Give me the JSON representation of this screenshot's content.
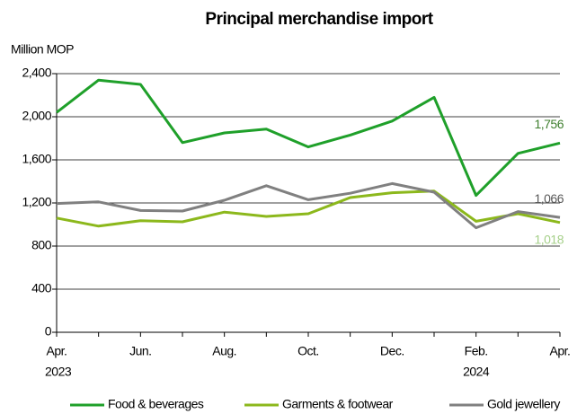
{
  "chart_data": {
    "type": "line",
    "title": "Principal merchandise import",
    "y_axis_label": "Million MOP",
    "categories": [
      "Apr.",
      null,
      "Jun.",
      null,
      "Aug.",
      null,
      "Oct.",
      null,
      "Dec.",
      null,
      "Feb.",
      null,
      "Apr."
    ],
    "year_labels": [
      "2023",
      null,
      null,
      null,
      null,
      null,
      null,
      null,
      null,
      null,
      "2024",
      null,
      null
    ],
    "series": [
      {
        "name": "Food & beverages",
        "color": "#1fa02a",
        "label_color": "#3f7f2f",
        "values": [
          2040,
          2340,
          2300,
          1760,
          1850,
          1885,
          1720,
          1830,
          1960,
          2180,
          1270,
          1660,
          1756
        ],
        "value_labels": [
          null,
          null,
          null,
          null,
          null,
          null,
          null,
          null,
          null,
          null,
          null,
          null,
          "1,756"
        ]
      },
      {
        "name": "Garments & footwear",
        "color": "#8cb81c",
        "label_color": "#a6d08a",
        "values": [
          1060,
          985,
          1035,
          1025,
          1115,
          1075,
          1100,
          1250,
          1295,
          1310,
          1030,
          1100,
          1018
        ],
        "value_labels": [
          null,
          null,
          null,
          null,
          null,
          null,
          null,
          null,
          null,
          null,
          null,
          null,
          "1,018"
        ]
      },
      {
        "name": "Gold jewellery",
        "color": "#808080",
        "label_color": "#595959",
        "values": [
          1195,
          1210,
          1130,
          1125,
          1225,
          1360,
          1230,
          1290,
          1380,
          1300,
          970,
          1120,
          1066
        ],
        "value_labels": [
          null,
          null,
          null,
          null,
          null,
          null,
          null,
          null,
          null,
          null,
          null,
          null,
          "1,066"
        ]
      }
    ],
    "ylim": [
      0,
      2400
    ],
    "yticks": [
      0,
      400,
      800,
      {
        "value": 1200,
        "label": "1,200"
      },
      {
        "value": 1600,
        "label": "1,600"
      },
      {
        "value": 2000,
        "label": "2,000"
      },
      {
        "value": 2400,
        "label": "2,400"
      }
    ],
    "grid": true,
    "legend": "bottom"
  }
}
